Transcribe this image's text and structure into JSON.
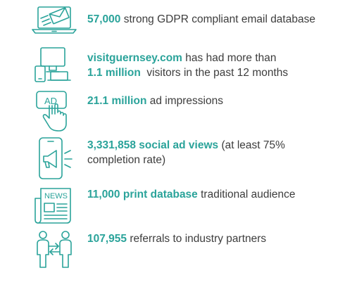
{
  "stats": [
    {
      "icon": "laptop-email-icon",
      "highlight": "57,000",
      "rest": " strong GDPR compliant email database"
    },
    {
      "icon": "devices-icon",
      "highlight": "visitguernsey.com",
      "rest": " has had more than",
      "line2_highlight": "1.1 million",
      "line2_rest": "  visitors in the past 12 months"
    },
    {
      "icon": "ad-click-icon",
      "highlight": "21.1 million",
      "rest": " ad impressions"
    },
    {
      "icon": "phone-megaphone-icon",
      "highlight": "3,331,858 social ad views",
      "rest": " (at least 75%",
      "line2_rest": "completion rate)"
    },
    {
      "icon": "newspaper-icon",
      "highlight": "11,000 print database",
      "rest": " traditional audience"
    },
    {
      "icon": "referral-people-icon",
      "highlight": "107,955",
      "rest": " referrals to industry partners"
    }
  ],
  "icon_labels": {
    "ad": "AD",
    "news": "NEWS"
  },
  "colors": {
    "accent": "#2aa39a",
    "text": "#3d3d3d"
  }
}
